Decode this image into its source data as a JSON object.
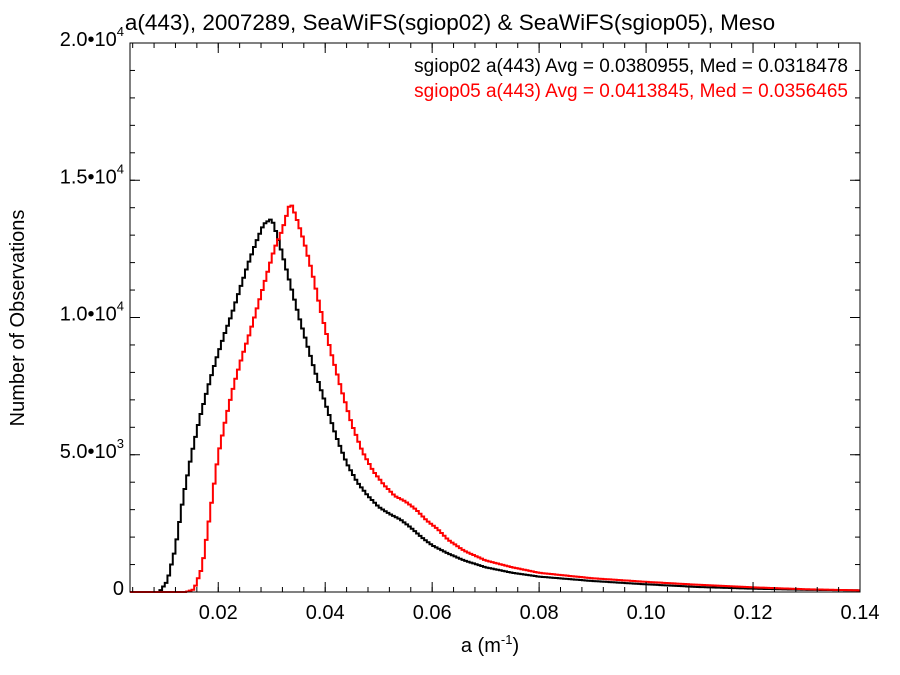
{
  "title": "a(443), 2007289, SeaWiFS(sgiop02) & SeaWiFS(sgiop05), Meso",
  "chart_data": {
    "type": "line",
    "title": "a(443), 2007289, SeaWiFS(sgiop02) & SeaWiFS(sgiop05), Meso",
    "xlabel": {
      "base": "a (m",
      "exp": "-1",
      "close": ")"
    },
    "ylabel": "Number of Observations",
    "xlim": [
      0.0035,
      0.14
    ],
    "ylim": [
      0,
      20000
    ],
    "x_ticks": [
      {
        "value": 0.02,
        "label": "0.02"
      },
      {
        "value": 0.04,
        "label": "0.04"
      },
      {
        "value": 0.06,
        "label": "0.06"
      },
      {
        "value": 0.08,
        "label": "0.08"
      },
      {
        "value": 0.1,
        "label": "0.10"
      },
      {
        "value": 0.12,
        "label": "0.12"
      },
      {
        "value": 0.14,
        "label": "0.14"
      }
    ],
    "y_ticks": [
      {
        "value": 0,
        "mantissa": "0",
        "exp": ""
      },
      {
        "value": 5000,
        "mantissa": "5.0•10",
        "exp": "3"
      },
      {
        "value": 10000,
        "mantissa": "1.0•10",
        "exp": "4"
      },
      {
        "value": 15000,
        "mantissa": "1.5•10",
        "exp": "4"
      },
      {
        "value": 20000,
        "mantissa": "2.0•10",
        "exp": "4"
      }
    ],
    "x_minor_step": 0.004,
    "y_minor_step": 1000,
    "grid": false,
    "legend_position": "top-right",
    "series": [
      {
        "name": "sgiop02",
        "legend": "sgiop02 a(443) Avg = 0.0380955, Med = 0.0318478",
        "color": "#000000",
        "x": [
          0.0035,
          0.009,
          0.0105,
          0.012,
          0.0135,
          0.015,
          0.0165,
          0.018,
          0.0195,
          0.021,
          0.0225,
          0.024,
          0.0255,
          0.027,
          0.0285,
          0.03,
          0.031,
          0.032,
          0.0335,
          0.035,
          0.0365,
          0.038,
          0.04,
          0.042,
          0.044,
          0.046,
          0.048,
          0.05,
          0.052,
          0.054,
          0.056,
          0.058,
          0.06,
          0.063,
          0.066,
          0.07,
          0.075,
          0.08,
          0.09,
          0.1,
          0.11,
          0.12,
          0.13,
          0.14
        ],
        "values": [
          0,
          0,
          400,
          1600,
          3500,
          5000,
          6300,
          7400,
          8400,
          9300,
          10100,
          11000,
          11900,
          12700,
          13400,
          13600,
          13000,
          12300,
          11200,
          10100,
          9100,
          8100,
          6900,
          5700,
          4700,
          4000,
          3500,
          3100,
          2850,
          2650,
          2350,
          2000,
          1700,
          1400,
          1150,
          900,
          700,
          560,
          400,
          280,
          180,
          120,
          80,
          60
        ]
      },
      {
        "name": "sgiop05",
        "legend": "sgiop05 a(443) Avg = 0.0413845, Med = 0.0356465",
        "color": "#ff0000",
        "x": [
          0.0035,
          0.014,
          0.0155,
          0.017,
          0.0185,
          0.02,
          0.0215,
          0.023,
          0.0245,
          0.026,
          0.0275,
          0.029,
          0.0305,
          0.032,
          0.0335,
          0.0345,
          0.036,
          0.0375,
          0.039,
          0.041,
          0.043,
          0.045,
          0.047,
          0.049,
          0.051,
          0.053,
          0.055,
          0.057,
          0.059,
          0.061,
          0.063,
          0.066,
          0.07,
          0.075,
          0.08,
          0.09,
          0.1,
          0.11,
          0.12,
          0.13,
          0.14
        ],
        "values": [
          0,
          0,
          100,
          900,
          2900,
          5000,
          6400,
          7600,
          8600,
          9500,
          10500,
          11500,
          12500,
          13200,
          14200,
          13700,
          12800,
          11700,
          10400,
          8800,
          7400,
          6100,
          5100,
          4400,
          3900,
          3500,
          3300,
          3000,
          2600,
          2300,
          1900,
          1500,
          1150,
          900,
          700,
          500,
          370,
          260,
          170,
          100,
          60
        ]
      }
    ]
  }
}
